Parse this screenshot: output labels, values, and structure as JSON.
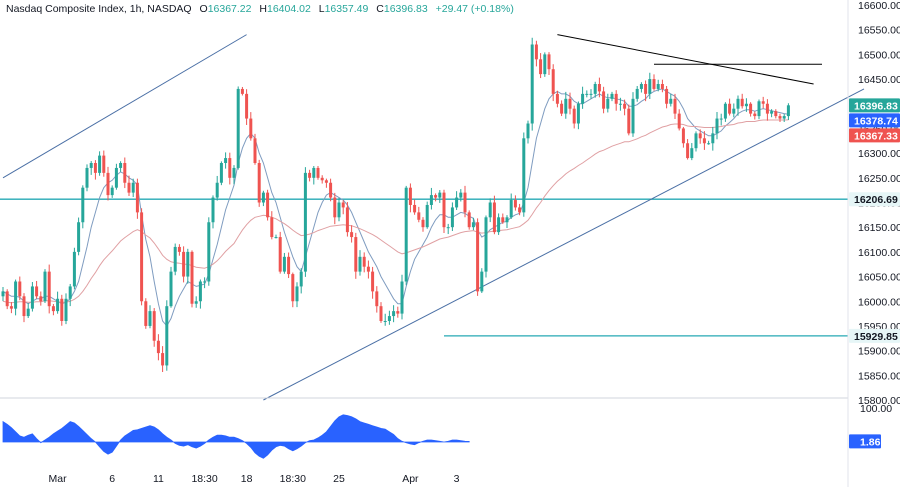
{
  "header": {
    "symbol": "Nasdaq Composite Index, 1h, NASDAQ",
    "o_label": "O",
    "o_value": "16367.22",
    "h_label": "H",
    "h_value": "16404.02",
    "l_label": "L",
    "l_value": "16357.49",
    "c_label": "C",
    "c_value": "16396.83",
    "change": "+29.47 (+0.18%)"
  },
  "chart_data": [
    {
      "type": "candlestick",
      "title": "Nasdaq Composite Index, 1h, NASDAQ",
      "ylim": [
        15800,
        16600
      ],
      "yticks": [
        16600,
        16550,
        16500,
        16450,
        16400,
        16350,
        16300,
        16250,
        16200,
        16150,
        16100,
        16050,
        16000,
        15950,
        15900,
        15850,
        15800
      ],
      "ytick_labels": [
        "16600.00",
        "16550.00",
        "16500.00",
        "16450.00",
        "16400.00",
        "16350.00",
        "16300.00",
        "16250.00",
        "16200.00",
        "16150.00",
        "16100.00",
        "16050.00",
        "16000.00",
        "15950.00",
        "15900.00",
        "15850.00",
        "15800.00"
      ],
      "xticks": [
        {
          "label": "Mar",
          "bar": 13
        },
        {
          "label": "6",
          "bar": 26
        },
        {
          "label": "11",
          "bar": 37
        },
        {
          "label": "18:30",
          "bar": 48
        },
        {
          "label": "18",
          "bar": 58
        },
        {
          "label": "18:30",
          "bar": 69
        },
        {
          "label": "25",
          "bar": 80
        },
        {
          "label": "Apr",
          "bar": 97
        },
        {
          "label": "3",
          "bar": 108
        }
      ],
      "grid": false,
      "colors": {
        "up": "#26a69a",
        "down": "#ef5350",
        "ma_fast": "#7f9cc0",
        "ma_slow": "#e0a0a3",
        "trend": "#4a6fa5",
        "support": "#26a9b4",
        "resistance": "#000000"
      },
      "closes": [
        16020,
        15990,
        15985,
        16040,
        16010,
        15970,
        15985,
        16030,
        16010,
        16000,
        16060,
        15990,
        15980,
        16005,
        15960,
        16005,
        16030,
        16100,
        16160,
        16230,
        16270,
        16280,
        16260,
        16295,
        16260,
        16215,
        16230,
        16270,
        16280,
        16240,
        16220,
        16240,
        16180,
        16000,
        15950,
        15980,
        15920,
        15895,
        15870,
        15990,
        16060,
        16110,
        16100,
        16050,
        16100,
        15995,
        16000,
        16040,
        16040,
        16160,
        16210,
        16240,
        16280,
        16290,
        16250,
        16270,
        16430,
        16420,
        16370,
        16330,
        16280,
        16200,
        16220,
        16170,
        16130,
        16130,
        16060,
        16090,
        16055,
        16000,
        16030,
        16060,
        16260,
        16250,
        16270,
        16250,
        16245,
        16240,
        16210,
        16170,
        16200,
        16190,
        16140,
        16130,
        16060,
        16090,
        16070,
        16060,
        16020,
        15990,
        15960,
        15960,
        15970,
        15980,
        15975,
        16040,
        16230,
        16195,
        16180,
        16165,
        16150,
        16195,
        16215,
        16210,
        16220,
        16150,
        16150,
        16190,
        16210,
        16220,
        16180,
        16150,
        16160,
        16020,
        16060,
        16170,
        16200,
        16140,
        16170,
        16160,
        16170,
        16205,
        16190,
        16180,
        16330,
        16360,
        16520,
        16490,
        16460,
        16500,
        16470,
        16420,
        16400,
        16380,
        16410,
        16390,
        16360,
        16400,
        16420,
        16420,
        16420,
        16440,
        16425,
        16390,
        16410,
        16420,
        16400,
        16400,
        16390,
        16340,
        16410,
        16430,
        16440,
        16420,
        16450,
        16430,
        16440,
        16430,
        16400,
        16410,
        16380,
        16350,
        16320,
        16290,
        16310,
        16340,
        16330,
        16320,
        16320,
        16340,
        16370,
        16370,
        16400,
        16380,
        16390,
        16410,
        16395,
        16400,
        16380,
        16375,
        16405,
        16400,
        16380,
        16385,
        16375,
        16370,
        16375,
        16396.83
      ],
      "series": [
        {
          "name": "",
          "values": [
            16020,
            16015,
            16010,
            16010,
            16008,
            16000,
            15995,
            16000,
            16005,
            16005,
            16010,
            16010,
            16005,
            16000,
            15995,
            15998,
            16005,
            16020,
            16040,
            16075,
            16110,
            16150,
            16180,
            16210,
            16230,
            16240,
            16245,
            16255,
            16262,
            16258,
            16250,
            16245,
            16235,
            16175,
            16125,
            16090,
            16040,
            15995,
            15960,
            15950,
            15965,
            15990,
            16010,
            16025,
            16040,
            16035,
            16030,
            16032,
            16035,
            16055,
            16085,
            16115,
            16150,
            16185,
            16210,
            16235,
            16280,
            16310,
            16330,
            16340,
            16330,
            16300,
            16280,
            16250,
            16220,
            16200,
            16170,
            16140,
            16115,
            16090,
            16070,
            16060,
            16090,
            16120,
            16150,
            16180,
            16200,
            16215,
            16220,
            16215,
            16210,
            16205,
            16195,
            16180,
            16160,
            16140,
            16120,
            16100,
            16085,
            16070,
            16050,
            16035,
            16020,
            16005,
            15995,
            15995,
            16030,
            16060,
            16085,
            16100,
            16115,
            16130,
            16150,
            16165,
            16175,
            16175,
            16170,
            16170,
            16175,
            16180,
            16178,
            16172,
            16168,
            16145,
            16130,
            16135,
            16145,
            16150,
            16155,
            16160,
            16162,
            16170,
            16175,
            16178,
            16200,
            16230,
            16280,
            16330,
            16360,
            16390,
            16410,
            16420,
            16425,
            16420,
            16420,
            16415,
            16405,
            16400,
            16400,
            16405,
            16410,
            16415,
            16420,
            16415,
            16412,
            16412,
            16410,
            16408,
            16405,
            16395,
            16395,
            16398,
            16405,
            16410,
            16420,
            16425,
            16428,
            16430,
            16425,
            16420,
            16415,
            16405,
            16390,
            16370,
            16360,
            16350,
            16345,
            16340,
            16335,
            16335,
            16340,
            16345,
            16355,
            16362,
            16370,
            16380,
            16385,
            16388,
            16388,
            16385,
            16388,
            16390,
            16388,
            16386,
            16384,
            16382,
            16380,
            16378.74
          ]
        },
        {
          "name": "",
          "values": [
            16000,
            15998,
            15997,
            15998,
            15999,
            15999,
            15998,
            15998,
            15999,
            15999,
            16001,
            16001,
            16000,
            15999,
            15998,
            15998,
            16000,
            16004,
            16010,
            16020,
            16032,
            16046,
            16058,
            16072,
            16084,
            16093,
            16102,
            16112,
            16122,
            16129,
            16135,
            16141,
            16145,
            16141,
            16134,
            16128,
            16118,
            16106,
            16093,
            16085,
            16080,
            16078,
            16077,
            16075,
            16075,
            16072,
            16069,
            16068,
            16067,
            16070,
            16075,
            16082,
            16091,
            16101,
            16109,
            16117,
            16131,
            16144,
            16155,
            16164,
            16170,
            16172,
            16174,
            16173,
            16170,
            16167,
            16162,
            16157,
            16151,
            16144,
            16138,
            16133,
            16134,
            16136,
            16139,
            16143,
            16146,
            16149,
            16152,
            16153,
            16154,
            16155,
            16154,
            16153,
            16150,
            16147,
            16143,
            16139,
            16135,
            16130,
            16124,
            16118,
            16112,
            16106,
            16100,
            16096,
            16098,
            16101,
            16104,
            16107,
            16110,
            16114,
            16118,
            16122,
            16126,
            16128,
            16130,
            16133,
            16136,
            16139,
            16141,
            16142,
            16143,
            16140,
            16138,
            16139,
            16141,
            16142,
            16143,
            16144,
            16145,
            16147,
            16149,
            16151,
            16157,
            16164,
            16176,
            16189,
            16200,
            16213,
            16224,
            16234,
            16243,
            16250,
            16258,
            16264,
            16269,
            16275,
            16280,
            16286,
            16292,
            16298,
            16303,
            16306,
            16310,
            16314,
            16317,
            16320,
            16323,
            16323,
            16326,
            16329,
            16333,
            16336,
            16341,
            16345,
            16349,
            16353,
            16355,
            16358,
            16359,
            16359,
            16358,
            16355,
            16354,
            16354,
            16353,
            16352,
            16352,
            16352,
            16353,
            16354,
            16356,
            16357,
            16358,
            16361,
            16362,
            16364,
            16364,
            16364,
            16366,
            16367,
            16367,
            16367,
            16367,
            16367,
            16367,
            16367.33
          ]
        }
      ],
      "annotations": {
        "last_close": "16396.83",
        "ma_fast_last": "16378.74",
        "ma_slow_last": "16367.33",
        "resistance_level": "16206.69",
        "low_level": "15929.85",
        "triangle_resistance": [
          [
            132,
            16540
          ],
          [
            193,
            16440
          ]
        ],
        "triangle_high_level": {
          "from_bar": 155,
          "to_bar": 195,
          "value": 16480
        },
        "channel_upper": [
          [
            0,
            16250
          ],
          [
            58,
            16540
          ]
        ],
        "channel_lower": [
          [
            62,
            15800
          ],
          [
            205,
            16430
          ]
        ],
        "low_line_from_bar": 105
      }
    },
    {
      "type": "area",
      "title": "",
      "ylim": [
        -50,
        100
      ],
      "yticks_shown": [
        "100.00"
      ],
      "last_value_label": "1.86",
      "values": [
        60,
        52,
        42,
        30,
        18,
        14,
        20,
        24,
        10,
        -2,
        6,
        14,
        24,
        32,
        40,
        50,
        60,
        56,
        46,
        34,
        22,
        10,
        0,
        -14,
        -28,
        -36,
        -30,
        -12,
        6,
        18,
        26,
        34,
        36,
        40,
        44,
        48,
        44,
        36,
        24,
        14,
        6,
        -4,
        -10,
        -12,
        -8,
        -14,
        -18,
        -12,
        -4,
        6,
        14,
        20,
        20,
        18,
        14,
        14,
        10,
        4,
        -4,
        -16,
        -32,
        -42,
        -48,
        -38,
        -24,
        -14,
        -10,
        -12,
        -20,
        -26,
        -20,
        -12,
        -2,
        4,
        6,
        12,
        20,
        30,
        46,
        62,
        74,
        80,
        78,
        74,
        68,
        60,
        56,
        52,
        48,
        44,
        40,
        38,
        30,
        22,
        10,
        2,
        -2,
        -6,
        -8,
        -2,
        2,
        6,
        6,
        4,
        2,
        0,
        2,
        6,
        6,
        4,
        2,
        1.86
      ],
      "color": "#2962ff"
    }
  ]
}
